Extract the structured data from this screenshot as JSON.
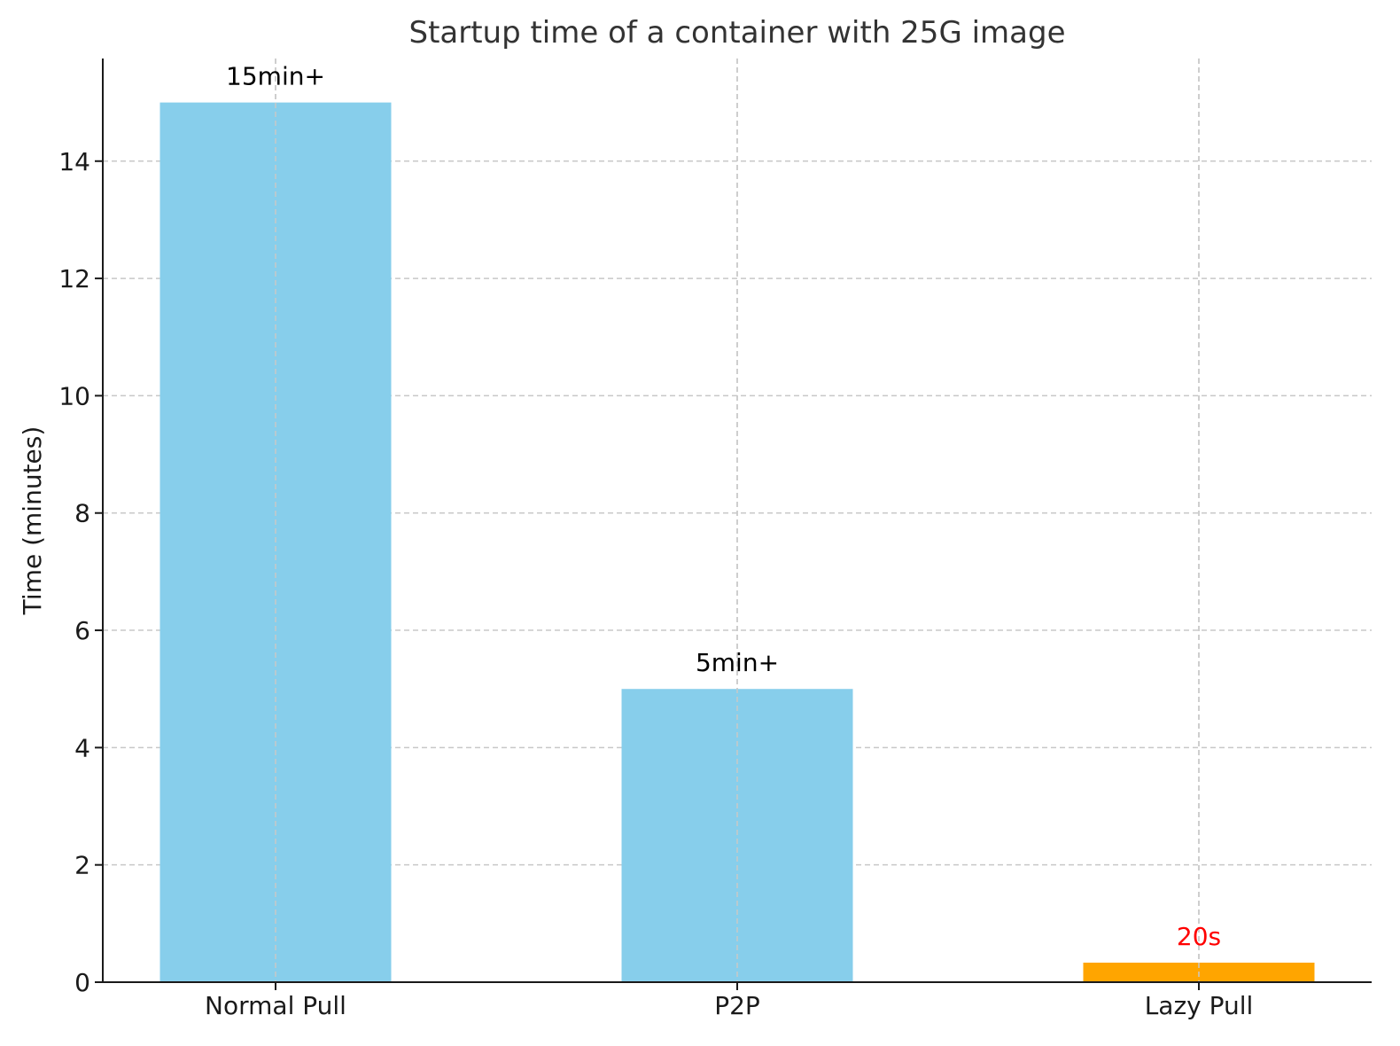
{
  "chart_data": {
    "type": "bar",
    "title": "Startup time of a container with 25G image",
    "xlabel": "",
    "ylabel": "Time (minutes)",
    "categories": [
      "Normal Pull",
      "P2P",
      "Lazy Pull"
    ],
    "values": [
      15,
      5,
      0.333
    ],
    "bar_labels": [
      "15min+",
      "5min+",
      "20s"
    ],
    "bar_colors": [
      "#87CEEB",
      "#87CEEB",
      "#FFA500"
    ],
    "label_colors": [
      "#000000",
      "#000000",
      "#FF0000"
    ],
    "ylim": [
      0,
      15.75
    ],
    "yticks": [
      0,
      2,
      4,
      6,
      8,
      10,
      12,
      14
    ],
    "grid": true
  }
}
